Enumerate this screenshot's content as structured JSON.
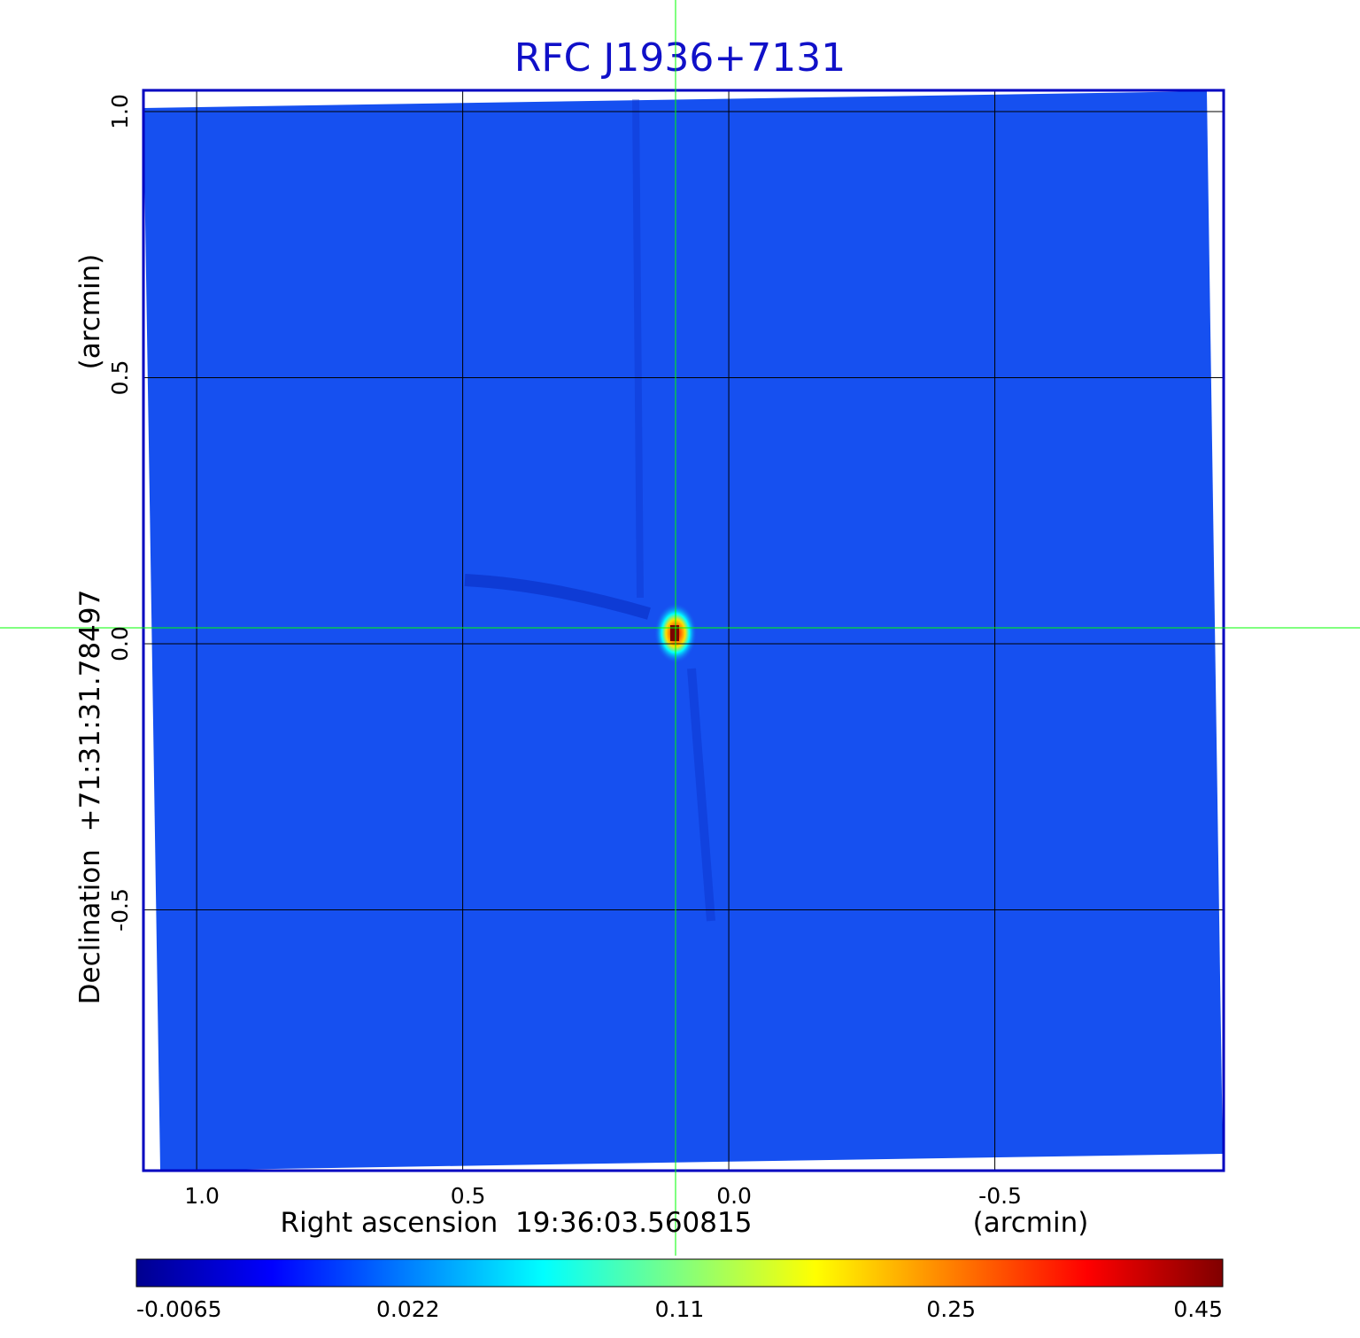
{
  "chart_data": {
    "type": "heatmap",
    "title": "RFC J1936+7131",
    "xlabel": "Right ascension  19:36:03.560815",
    "xlabel_unit": "(arcmin)",
    "ylabel": "Declination  +71:31:31.78497",
    "ylabel_unit": "(arcmin)",
    "x_ticks": [
      "1.0",
      "0.5",
      "0.0",
      "-0.5"
    ],
    "x_tick_values": [
      1.0,
      0.5,
      0.0,
      -0.5
    ],
    "y_ticks": [
      "1.0",
      "0.5",
      "0.0",
      "-0.5"
    ],
    "y_tick_values": [
      1.0,
      0.5,
      0.0,
      -0.5
    ],
    "xlim": [
      1.1,
      -0.93
    ],
    "ylim": [
      -0.99,
      1.04
    ],
    "grid": true,
    "colormap": "jet",
    "colorbar": {
      "tick_labels": [
        "-0.0065",
        "0.022",
        "0.11",
        "0.25",
        "0.45"
      ],
      "min": -0.0065,
      "max": 0.45
    },
    "peak": {
      "ra_offset_arcmin": 0.1,
      "dec_offset_arcmin": 0.02,
      "value": 0.45
    },
    "crosshair": {
      "ra_offset_arcmin": 0.1,
      "dec_offset_arcmin": 0.03
    },
    "colors": {
      "title": "#1010c8",
      "frame": "#0000c0",
      "background_field": "#1650f0",
      "crosshair": "#00ff00",
      "grid": "#000000"
    }
  }
}
